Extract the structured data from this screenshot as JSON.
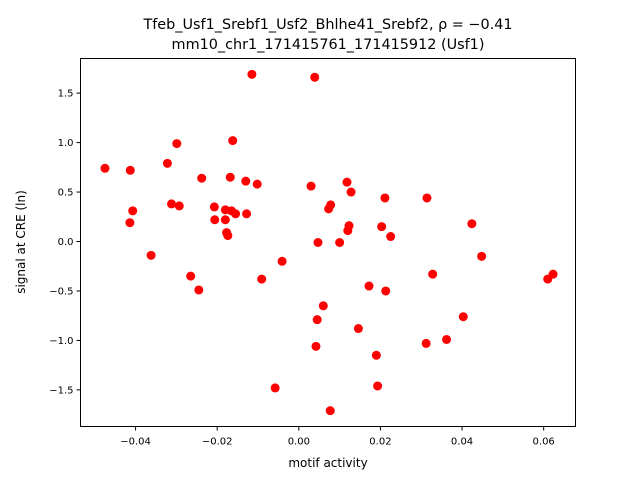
{
  "chart_data": {
    "type": "scatter",
    "title_line1": "Tfeb_Usf1_Srebf1_Usf2_Bhlhe41_Srebf2, ρ = −0.41",
    "title_line2": "mm10_chr1_171415761_171415912 (Usf1)",
    "xlabel": "motif activity",
    "ylabel": "signal at CRE (ln)",
    "xlim": [
      -0.0535,
      0.0678
    ],
    "ylim": [
      -1.87,
      1.85
    ],
    "xticks": [
      -0.04,
      -0.02,
      0.0,
      0.02,
      0.04,
      0.06
    ],
    "xtick_labels": [
      "−0.04",
      "−0.02",
      "0.00",
      "0.02",
      "0.04",
      "0.06"
    ],
    "yticks": [
      -1.5,
      -1.0,
      -0.5,
      0.0,
      0.5,
      1.0,
      1.5
    ],
    "ytick_labels": [
      "−1.5",
      "−1.0",
      "−0.5",
      "0.0",
      "0.5",
      "1.0",
      "1.5"
    ],
    "grid": false,
    "marker_color": "#ff0000",
    "points": [
      {
        "x": -0.0475,
        "y": 0.74
      },
      {
        "x": -0.0413,
        "y": 0.72
      },
      {
        "x": -0.0407,
        "y": 0.31
      },
      {
        "x": -0.0414,
        "y": 0.19
      },
      {
        "x": -0.0362,
        "y": -0.14
      },
      {
        "x": -0.0322,
        "y": 0.79
      },
      {
        "x": -0.0299,
        "y": 0.99
      },
      {
        "x": -0.0312,
        "y": 0.38
      },
      {
        "x": -0.0293,
        "y": 0.36
      },
      {
        "x": -0.0265,
        "y": -0.35
      },
      {
        "x": -0.0245,
        "y": -0.49
      },
      {
        "x": -0.0238,
        "y": 0.64
      },
      {
        "x": -0.0207,
        "y": 0.35
      },
      {
        "x": -0.0206,
        "y": 0.22
      },
      {
        "x": -0.018,
        "y": 0.32
      },
      {
        "x": -0.018,
        "y": 0.22
      },
      {
        "x": -0.0177,
        "y": 0.09
      },
      {
        "x": -0.0174,
        "y": 0.06
      },
      {
        "x": -0.0168,
        "y": 0.65
      },
      {
        "x": -0.0165,
        "y": 0.31
      },
      {
        "x": -0.0162,
        "y": 1.02
      },
      {
        "x": -0.0155,
        "y": 0.28
      },
      {
        "x": -0.013,
        "y": 0.61
      },
      {
        "x": -0.0128,
        "y": 0.28
      },
      {
        "x": -0.0115,
        "y": 1.69
      },
      {
        "x": -0.0102,
        "y": 0.58
      },
      {
        "x": -0.0091,
        "y": -0.38
      },
      {
        "x": -0.0058,
        "y": -1.48
      },
      {
        "x": -0.0041,
        "y": -0.2
      },
      {
        "x": 0.003,
        "y": 0.56
      },
      {
        "x": 0.0039,
        "y": 1.66
      },
      {
        "x": 0.0042,
        "y": -1.06
      },
      {
        "x": 0.0045,
        "y": -0.79
      },
      {
        "x": 0.0047,
        "y": -0.01
      },
      {
        "x": 0.006,
        "y": -0.65
      },
      {
        "x": 0.0073,
        "y": 0.33
      },
      {
        "x": 0.0078,
        "y": 0.37
      },
      {
        "x": 0.0077,
        "y": -1.71
      },
      {
        "x": 0.01,
        "y": -0.01
      },
      {
        "x": 0.0118,
        "y": 0.6
      },
      {
        "x": 0.012,
        "y": 0.11
      },
      {
        "x": 0.0123,
        "y": 0.16
      },
      {
        "x": 0.0128,
        "y": 0.5
      },
      {
        "x": 0.0146,
        "y": -0.88
      },
      {
        "x": 0.0172,
        "y": -0.45
      },
      {
        "x": 0.019,
        "y": -1.15
      },
      {
        "x": 0.0193,
        "y": -1.46
      },
      {
        "x": 0.0203,
        "y": 0.15
      },
      {
        "x": 0.0211,
        "y": 0.44
      },
      {
        "x": 0.0213,
        "y": -0.5
      },
      {
        "x": 0.0225,
        "y": 0.05
      },
      {
        "x": 0.0312,
        "y": -1.03
      },
      {
        "x": 0.0314,
        "y": 0.44
      },
      {
        "x": 0.0328,
        "y": -0.33
      },
      {
        "x": 0.0362,
        "y": -0.99
      },
      {
        "x": 0.0403,
        "y": -0.76
      },
      {
        "x": 0.0424,
        "y": 0.18
      },
      {
        "x": 0.0448,
        "y": -0.15
      },
      {
        "x": 0.061,
        "y": -0.38
      },
      {
        "x": 0.0623,
        "y": -0.33
      }
    ]
  }
}
